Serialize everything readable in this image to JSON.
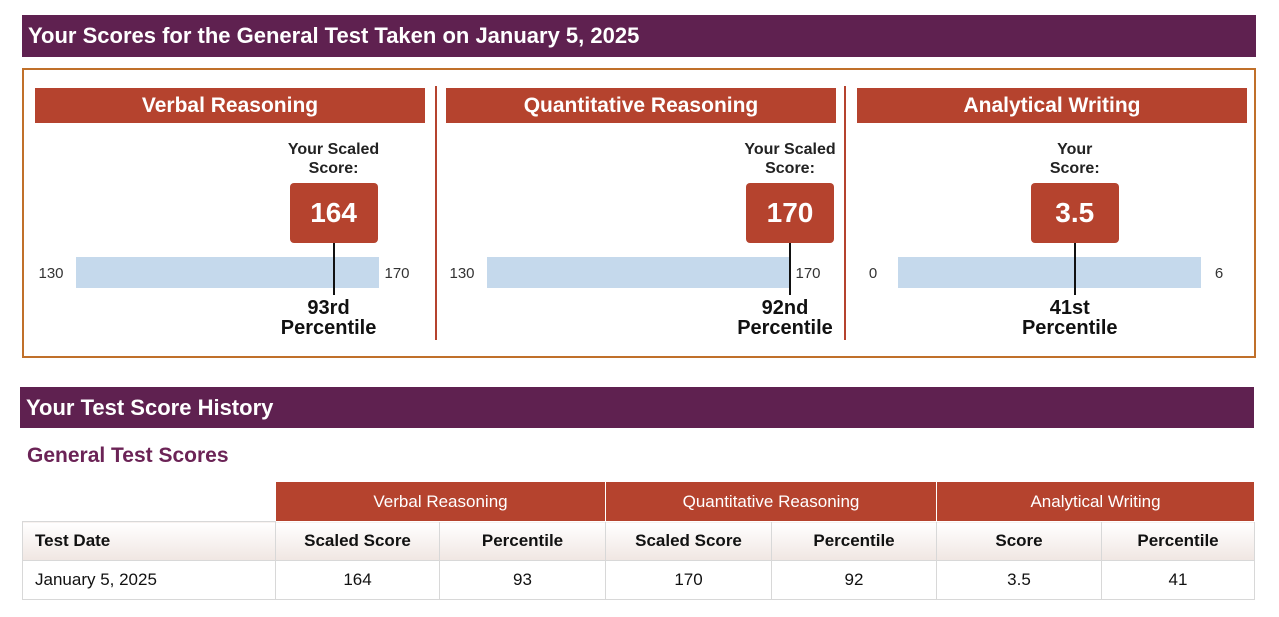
{
  "header": {
    "title": "Your Scores for the General Test Taken on January 5, 2025"
  },
  "sections": [
    {
      "title": "Verbal Reasoning",
      "score_label": "Your Scaled Score:",
      "score": 164,
      "min": 130,
      "max": 170,
      "percentile_text": "93rd Percentile"
    },
    {
      "title": "Quantitative Reasoning",
      "score_label": "Your Scaled Score:",
      "score": 170,
      "min": 130,
      "max": 170,
      "percentile_text": "92nd Percentile"
    },
    {
      "title": "Analytical Writing",
      "score_label": "Your Score:",
      "score": 3.5,
      "min": 0,
      "max": 6,
      "percentile_text": "41st Percentile"
    }
  ],
  "history": {
    "title": "Your Test Score History",
    "subtitle": "General Test Scores",
    "table": {
      "groups": [
        "Verbal Reasoning",
        "Quantitative Reasoning",
        "Analytical Writing"
      ],
      "columns": [
        "Test Date",
        "Scaled Score",
        "Percentile",
        "Scaled Score",
        "Percentile",
        "Score",
        "Percentile"
      ],
      "rows": [
        [
          "January 5, 2025",
          164,
          93,
          170,
          92,
          3.5,
          41
        ]
      ]
    }
  }
}
